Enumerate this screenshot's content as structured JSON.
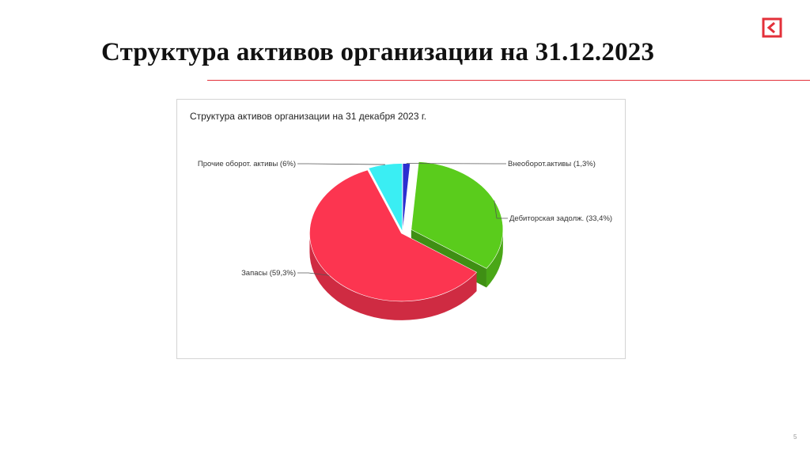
{
  "slide": {
    "title": "Структура активов организации на 31.12.2023",
    "page_number": "5",
    "accent_color": "#e3303a",
    "logo_icon": "back-arrow-logo-icon"
  },
  "chart_data": {
    "type": "pie",
    "title": "Структура активов организации на 31 декабря 2023 г.",
    "three_d": true,
    "slices": [
      {
        "label": "Внеоборот.активы (1,3%)",
        "value": 1.3,
        "color": "#2b2fd0"
      },
      {
        "label": "Дебиторская задолж. (33,4%)",
        "value": 33.4,
        "color": "#5acc1c"
      },
      {
        "label": "Запасы (59,3%)",
        "value": 59.3,
        "color": "#fc3550"
      },
      {
        "label": "Прочие оборот. активы (6%)",
        "value": 6,
        "color": "#3aeef3"
      }
    ],
    "exploded": [
      "Дебиторская задолж. (33,4%)"
    ],
    "legend": "none"
  }
}
